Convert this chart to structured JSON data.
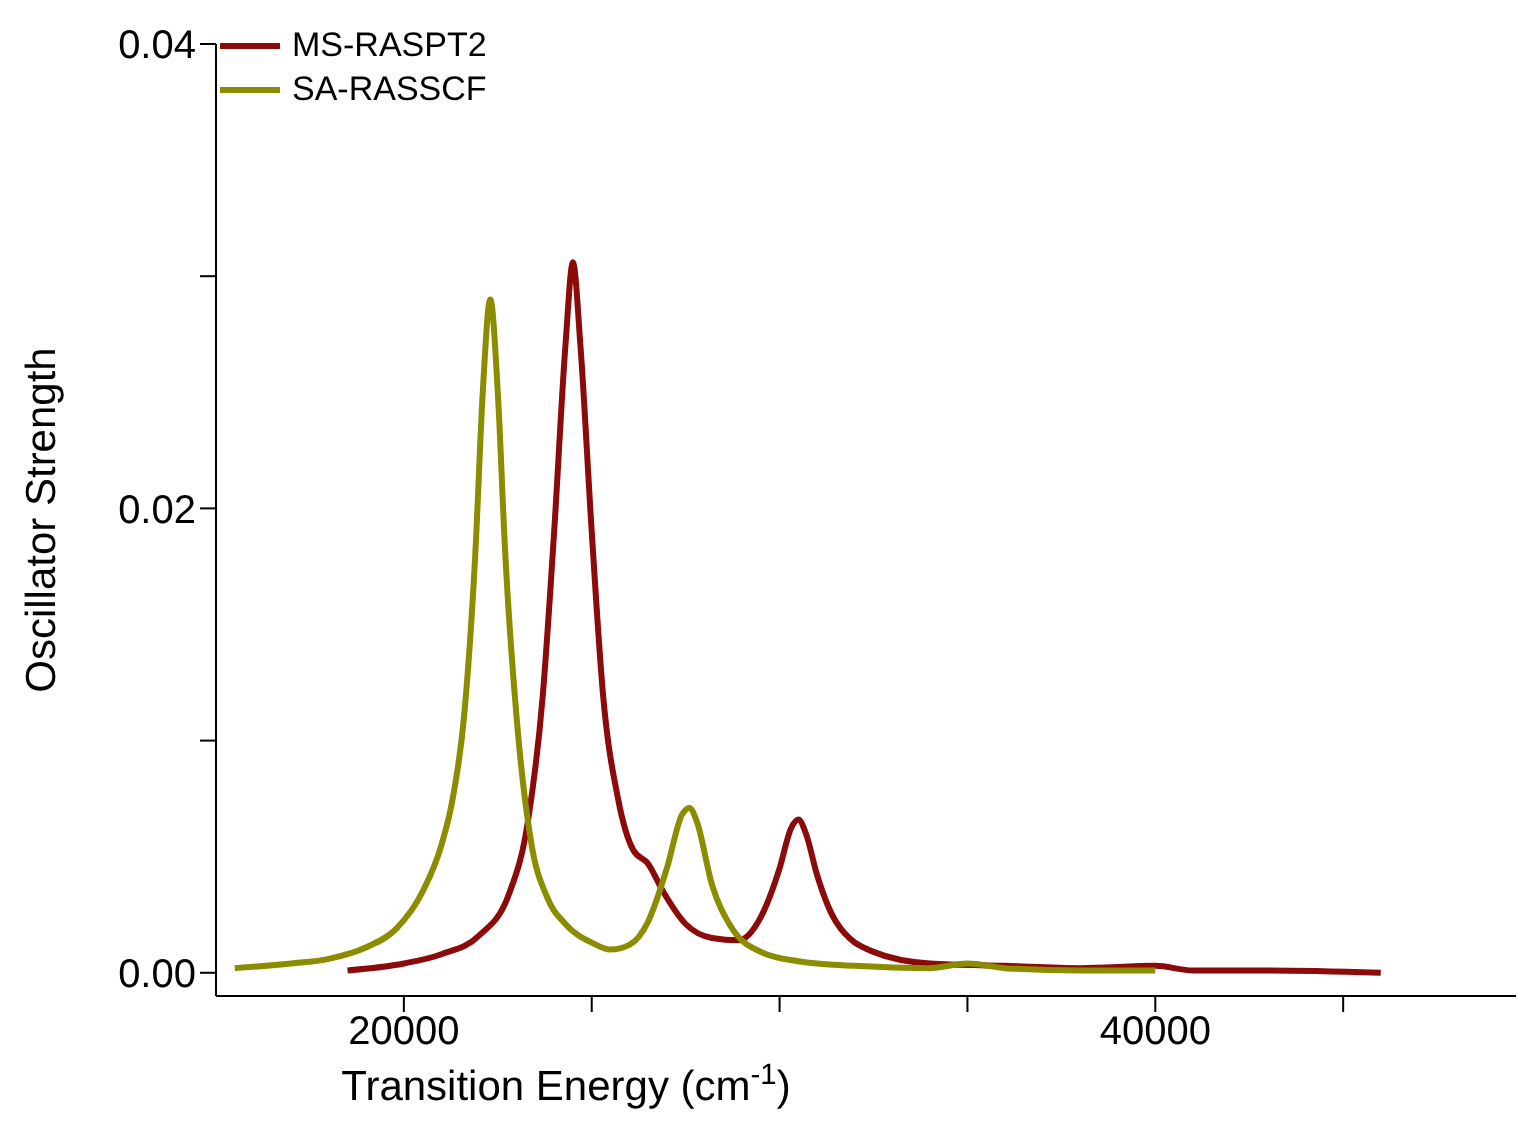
{
  "chart_data": {
    "type": "line",
    "xlabel": "Transition Energy (cm$^{-1}$)",
    "ylabel": "Oscillator Strength",
    "xlim": [
      15000,
      49600
    ],
    "ylim": [
      -0.001,
      0.04
    ],
    "xticks": [
      {
        "value": 20000,
        "label": "20000"
      },
      {
        "value": 25000,
        "label": null
      },
      {
        "value": 30000,
        "label": null
      },
      {
        "value": 35000,
        "label": null
      },
      {
        "value": 40000,
        "label": "40000"
      },
      {
        "value": 45000,
        "label": null
      }
    ],
    "yticks": [
      {
        "value": 0,
        "label": "0.00"
      },
      {
        "value": 0.01,
        "label": null
      },
      {
        "value": 0.02,
        "label": "0.02"
      },
      {
        "value": 0.03,
        "label": null
      },
      {
        "value": 0.04,
        "label": "0.04"
      }
    ],
    "grid": false,
    "legend": "top left",
    "marker": "none",
    "line_style": "solid",
    "series": [
      {
        "name": "MS-RASPT2",
        "color": "#8b0a0a",
        "x": [
          18500,
          20000,
          21000,
          22000,
          22800,
          23300,
          23700,
          24000,
          24300,
          24500,
          24700,
          25000,
          25300,
          25700,
          26100,
          26500,
          26900,
          27500,
          28200,
          28900,
          29500,
          30000,
          30300,
          30500,
          30700,
          31000,
          31500,
          32500,
          34000,
          36000,
          38000,
          40000,
          41000,
          43000,
          46000
        ],
        "values": [
          0.0001,
          0.0004,
          0.0008,
          0.0016,
          0.0034,
          0.0065,
          0.012,
          0.019,
          0.027,
          0.0306,
          0.027,
          0.019,
          0.012,
          0.0075,
          0.0053,
          0.0047,
          0.0035,
          0.0021,
          0.0015,
          0.0014,
          0.0024,
          0.0045,
          0.0062,
          0.0066,
          0.006,
          0.0042,
          0.0022,
          0.0009,
          0.0004,
          0.0003,
          0.0002,
          0.0003,
          0.0001,
          0.0001,
          0
        ]
      },
      {
        "name": "SA-RASSCF",
        "color": "#8c8c00",
        "x": [
          15500,
          17000,
          18000,
          19000,
          19800,
          20500,
          21000,
          21300,
          21600,
          21900,
          22100,
          22300,
          22500,
          22700,
          23000,
          23400,
          23800,
          24300,
          25000,
          25500,
          26000,
          26500,
          27000,
          27400,
          27600,
          27800,
          28200,
          28700,
          29500,
          30500,
          32000,
          34000,
          35000,
          36000,
          38000,
          40000
        ],
        "values": [
          0.0002,
          0.0004,
          0.0006,
          0.0011,
          0.0019,
          0.0035,
          0.0055,
          0.0075,
          0.011,
          0.018,
          0.025,
          0.029,
          0.025,
          0.018,
          0.011,
          0.0055,
          0.0033,
          0.0021,
          0.0013,
          0.001,
          0.0012,
          0.0022,
          0.0045,
          0.0068,
          0.0071,
          0.0065,
          0.0038,
          0.002,
          0.0009,
          0.0005,
          0.0003,
          0.0002,
          0.0004,
          0.0002,
          0.0001,
          0.0001
        ]
      }
    ]
  }
}
